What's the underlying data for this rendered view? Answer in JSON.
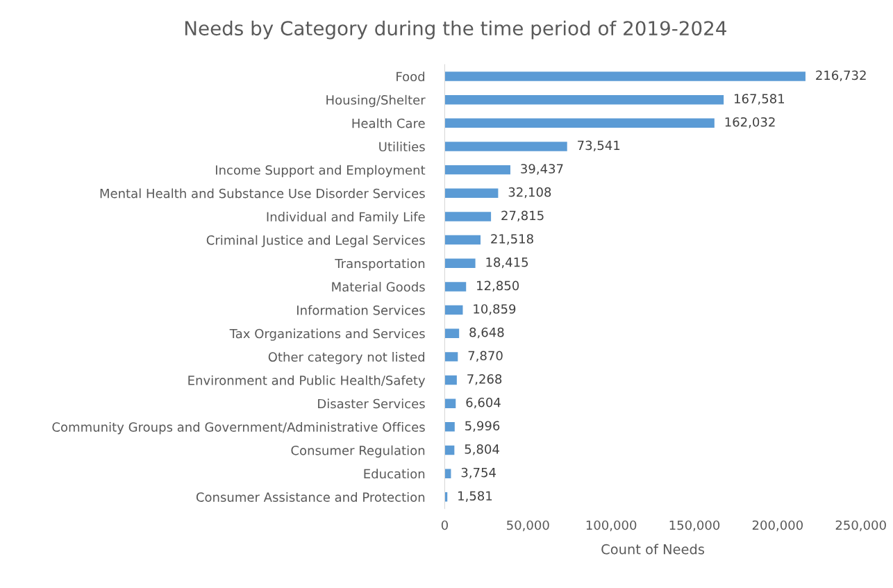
{
  "chart_data": {
    "type": "bar",
    "orientation": "horizontal",
    "title": "Needs by Category during the time period of 2019-2024",
    "xlabel": "Count of Needs",
    "categories": [
      "Food",
      "Housing/Shelter",
      "Health Care",
      "Utilities",
      "Income Support and Employment",
      "Mental Health and Substance Use Disorder Services",
      "Individual and Family Life",
      "Criminal Justice and Legal Services",
      "Transportation",
      "Material Goods",
      "Information Services",
      "Tax Organizations and Services",
      "Other category not listed",
      "Environment and Public Health/Safety",
      "Disaster Services",
      "Community Groups and Government/Administrative Offices",
      "Consumer Regulation",
      "Education",
      "Consumer Assistance and Protection"
    ],
    "values": [
      216732,
      167581,
      162032,
      73541,
      39437,
      32108,
      27815,
      21518,
      18415,
      12850,
      10859,
      8648,
      7870,
      7268,
      6604,
      5996,
      5804,
      3754,
      1581
    ],
    "value_labels": [
      "216,732",
      "167,581",
      "162,032",
      "73,541",
      "39,437",
      "32,108",
      "27,815",
      "21,518",
      "18,415",
      "12,850",
      "10,859",
      "8,648",
      "7,870",
      "7,268",
      "6,604",
      "5,996",
      "5,804",
      "3,754",
      "1,581"
    ],
    "color": "#5b9bd5",
    "grid": false,
    "legend": false,
    "xlim": [
      0,
      250000
    ],
    "xticks": [
      0,
      {
        "value": 50000,
        "label": "50,000"
      },
      {
        "value": 100000,
        "label": "100,000"
      },
      {
        "value": 150000,
        "label": "150,000"
      },
      {
        "value": 200000,
        "label": "200,000"
      },
      {
        "value": 250000,
        "label": "250,000"
      }
    ]
  }
}
